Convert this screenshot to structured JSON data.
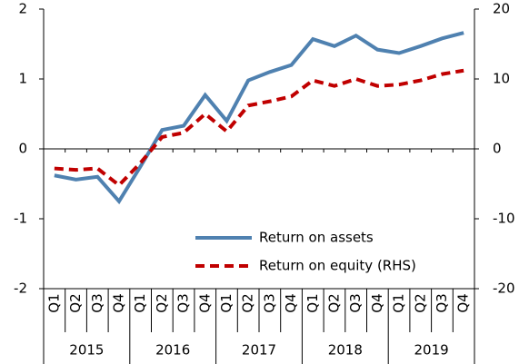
{
  "chart_data": {
    "type": "line",
    "categories": [
      "Q1",
      "Q2",
      "Q3",
      "Q4",
      "Q1",
      "Q2",
      "Q3",
      "Q4",
      "Q1",
      "Q2",
      "Q3",
      "Q4",
      "Q1",
      "Q2",
      "Q3",
      "Q4",
      "Q1",
      "Q2",
      "Q3",
      "Q4"
    ],
    "groups": [
      "2015",
      "2016",
      "2017",
      "2018",
      "2019"
    ],
    "series": [
      {
        "name": "Return on assets",
        "color": "#4f81b0",
        "values": [
          -0.38,
          -0.44,
          -0.4,
          -0.75,
          -0.25,
          0.27,
          0.33,
          0.77,
          0.4,
          0.98,
          1.1,
          1.2,
          1.57,
          1.47,
          1.62,
          1.42,
          1.37,
          1.47,
          1.58,
          1.66
        ]
      },
      {
        "name": "Return on equity (RHS)",
        "color": "#c00000",
        "axis": "y2",
        "dashed": true,
        "values": [
          -2.8,
          -3.0,
          -2.8,
          -5.2,
          -2.0,
          1.7,
          2.3,
          5.0,
          2.5,
          6.2,
          6.8,
          7.5,
          9.8,
          9.0,
          10.0,
          9.0,
          9.2,
          9.8,
          10.7,
          11.2
        ]
      }
    ],
    "ylim": [
      -2,
      2
    ],
    "yticks": [
      -2,
      -1,
      0,
      1,
      2
    ],
    "y2lim": [
      -20,
      20
    ],
    "y2ticks": [
      -20,
      -10,
      0,
      10,
      20
    ]
  }
}
